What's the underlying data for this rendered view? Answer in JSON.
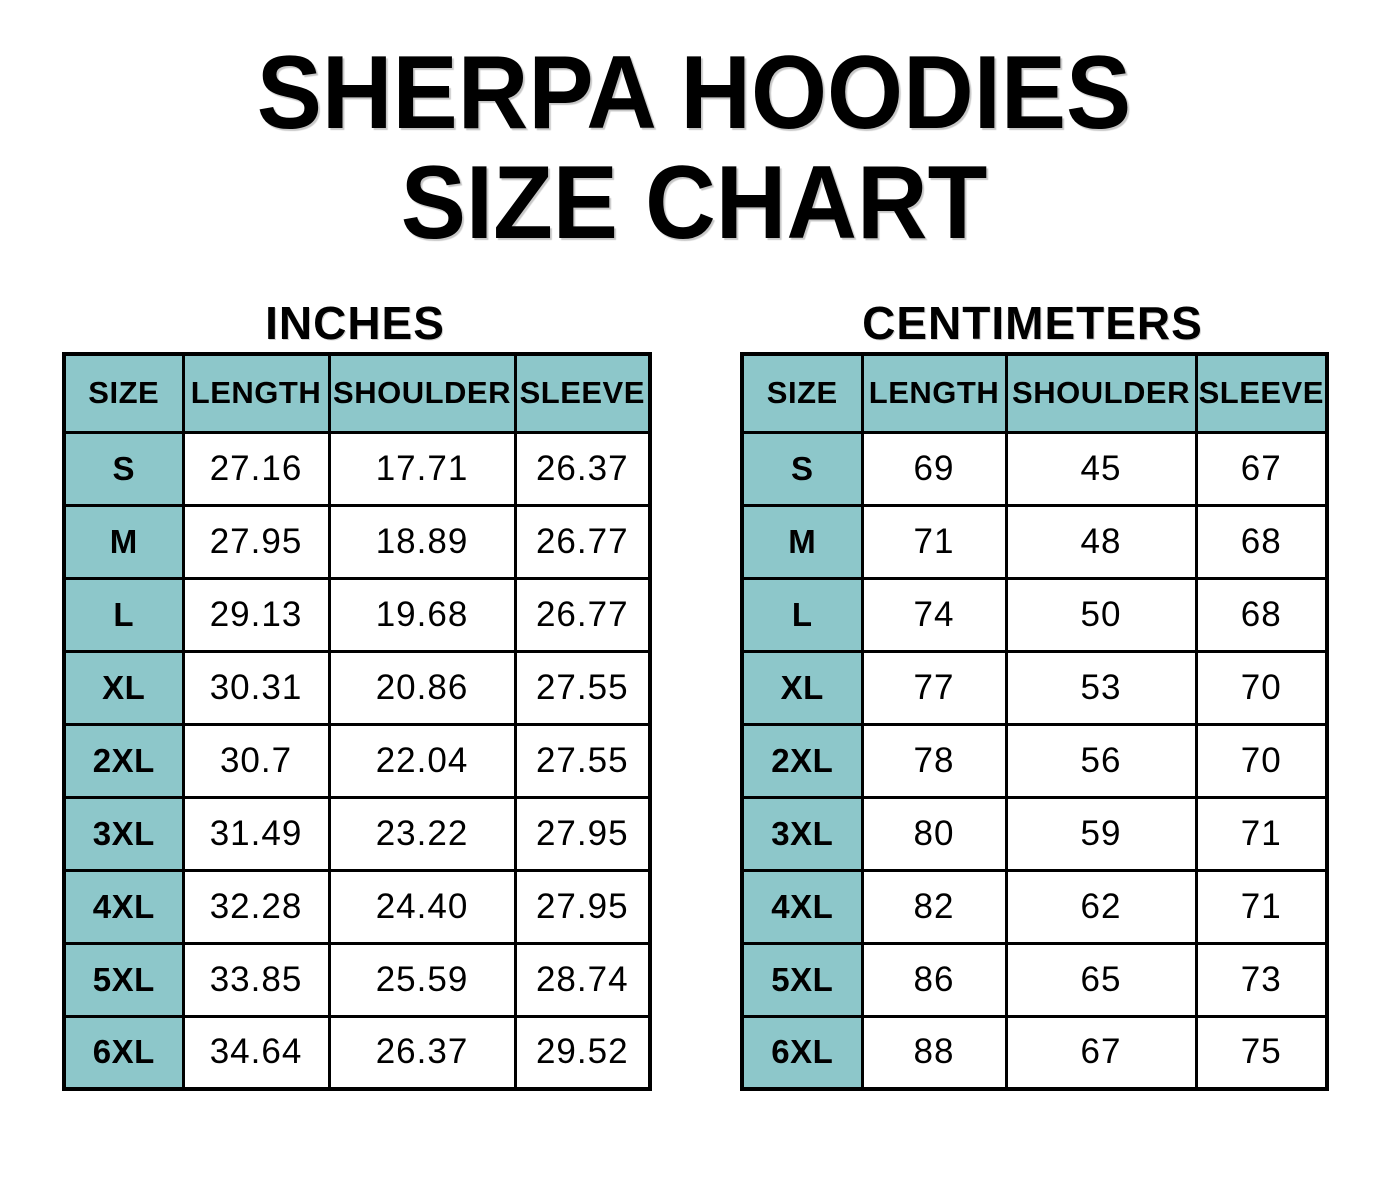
{
  "title": {
    "line1": "SHERPA HOODIES",
    "line2": "SIZE CHART"
  },
  "tables": [
    {
      "unit_label": "INCHES",
      "columns": [
        "SIZE",
        "LENGTH",
        "SHOULDER",
        "SLEEVE"
      ],
      "rows": [
        [
          "S",
          "27.16",
          "17.71",
          "26.37"
        ],
        [
          "M",
          "27.95",
          "18.89",
          "26.77"
        ],
        [
          "L",
          "29.13",
          "19.68",
          "26.77"
        ],
        [
          "XL",
          "30.31",
          "20.86",
          "27.55"
        ],
        [
          "2XL",
          "30.7",
          "22.04",
          "27.55"
        ],
        [
          "3XL",
          "31.49",
          "23.22",
          "27.95"
        ],
        [
          "4XL",
          "32.28",
          "24.40",
          "27.95"
        ],
        [
          "5XL",
          "33.85",
          "25.59",
          "28.74"
        ],
        [
          "6XL",
          "34.64",
          "26.37",
          "29.52"
        ]
      ]
    },
    {
      "unit_label": "CENTIMETERS",
      "columns": [
        "SIZE",
        "LENGTH",
        "SHOULDER",
        "SLEEVE"
      ],
      "rows": [
        [
          "S",
          "69",
          "45",
          "67"
        ],
        [
          "M",
          "71",
          "48",
          "68"
        ],
        [
          "L",
          "74",
          "50",
          "68"
        ],
        [
          "XL",
          "77",
          "53",
          "70"
        ],
        [
          "2XL",
          "78",
          "56",
          "70"
        ],
        [
          "3XL",
          "80",
          "59",
          "71"
        ],
        [
          "4XL",
          "82",
          "62",
          "71"
        ],
        [
          "5XL",
          "86",
          "65",
          "73"
        ],
        [
          "6XL",
          "88",
          "67",
          "75"
        ]
      ]
    }
  ],
  "colors": {
    "header_teal": "#8dc7ca",
    "border": "#000000",
    "background": "#ffffff",
    "text": "#000000"
  }
}
